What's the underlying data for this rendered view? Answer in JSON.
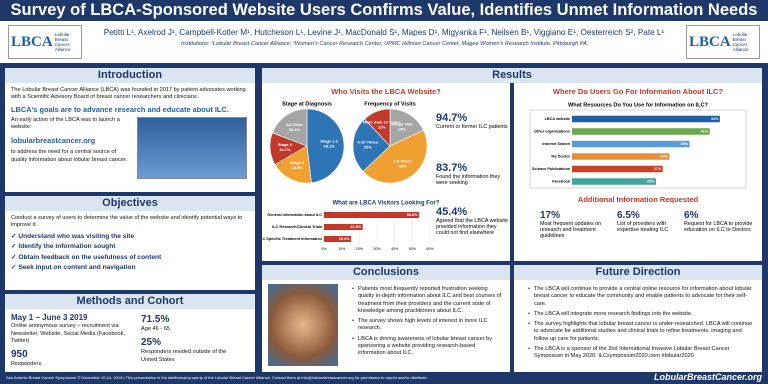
{
  "header": {
    "title": "Survey of LBCA-Sponsored Website Users Confirms Value, Identifies Unmet Information Needs",
    "authors": "Petitti L¹, Axelrod J¹, Campbell-Kotler M¹, Hutcheson L¹, Levine J¹, MacDonald S¹, Mapes D¹, Migyanka F¹, Neilsen B¹, Viggiano E¹, Oesterreich S², Pate L¹",
    "institutions": "Institutions: ¹Lobular Breast Cancer Alliance; ²Women's Cancer Research Center, UPMC Hillman Cancer Center, Magee Women's Research Institute, Pittsburgh PA",
    "logo_mark": "LBCA",
    "logo_text": "Lobular Breast Cancer Alliance"
  },
  "intro": {
    "heading": "Introduction",
    "text": "The Lobular Breast Cancer Alliance (LBCA) was founded in 2017 by patient advocates working with a Scientific Advisory Board of breast cancer researchers and clinicians.",
    "subheading": "LBCA's goals are to advance research and educate about ILC.",
    "early": "An early action of the LBCA was to launch a website:",
    "url": "lobularbreastcancer.org",
    "need": "to address the need for a central source of quality information about lobular breast cancer."
  },
  "objectives": {
    "heading": "Objectives",
    "text": "Conduct a survey of users to determine the value of the website and identify potential ways to improve it.",
    "items": [
      "Understand who was visiting the site",
      "Identify the information sought",
      "Obtain feedback on the usefulness of content",
      "Seek input on content and navigation"
    ]
  },
  "methods": {
    "heading": "Methods and Cohort",
    "date": "May 1 – June 3 2019",
    "recruit": "Online anonymous survey – recruitment via Newsletter, Website, Social Media (Facebook, Twitter)",
    "n": "950",
    "n_label": "Responders",
    "stats": [
      {
        "value": "71.5%",
        "label": "Age 46 - 65"
      },
      {
        "value": "25%",
        "label": "Responders resided outside of the United States"
      }
    ]
  },
  "results": {
    "heading": "Results",
    "who_title": "Who Visits the LBCA Website?",
    "stage_pie": {
      "type": "pie",
      "title": "Stage at Diagnosis",
      "categories": [
        "Stage 1-2",
        "Stage 3",
        "Stage 4",
        "All Other"
      ],
      "values": [
        48.1,
        18.5,
        14.2,
        19.2
      ],
      "value_labels": [
        "48.1%",
        "18.5%",
        "14.2%",
        "19.2%"
      ],
      "colors": [
        "#2e75b6",
        "#f0a030",
        "#c0392b",
        "#a5a5a5"
      ]
    },
    "visit_pie": {
      "type": "pie",
      "title": "Frequency of Visits",
      "categories": [
        "Single Visit",
        "2-5 Times",
        "6-10 Times",
        "More than 10 Times"
      ],
      "values": [
        18,
        45,
        25,
        12
      ],
      "value_labels": [
        "18%",
        "45%",
        "25%",
        "12%"
      ],
      "colors": [
        "#a5a5a5",
        "#f0a030",
        "#2e75b6",
        "#c0392b"
      ]
    },
    "stats": [
      {
        "value": "94.7%",
        "label": "Current or former ILC patients"
      },
      {
        "value": "83.7%",
        "label": "Found the information they were seeking"
      },
      {
        "value": "45.4%",
        "label": "Agreed that the LBCA website provided information they could not find elsewhere"
      }
    ],
    "looking": {
      "type": "bar",
      "title": "What are LBCA Visitors Looking For?",
      "categories": [
        "General Information about ILC",
        "ILC Research/Clinical Trials",
        "ILC Specific Treatment Information"
      ],
      "values": [
        53.8,
        21.9,
        15.3
      ],
      "value_labels": [
        "53.8%",
        "21.9%",
        "15.3%"
      ],
      "color": "#c0392b",
      "xlim": [
        0,
        60
      ],
      "xticks": [
        {
          "value": 0,
          "label": "0%"
        },
        {
          "value": 10,
          "label": "10%"
        },
        {
          "value": 20,
          "label": "20%"
        },
        {
          "value": 30,
          "label": "30%"
        },
        {
          "value": 40,
          "label": "40%"
        },
        {
          "value": 50,
          "label": "50%"
        },
        {
          "value": 60,
          "label": "60%"
        }
      ]
    },
    "where_title": "Where Do Users Go For Information About ILC?",
    "resources": {
      "type": "bar",
      "title": "What Resources Do You Use for Information on ILC?",
      "categories": [
        "LBCA website",
        "Other organizations",
        "Internet Search",
        "My Doctor",
        "Science Publications",
        "Facebook"
      ],
      "values": [
        44,
        41,
        35,
        29,
        27,
        25
      ],
      "value_labels": [
        "44%",
        "41%",
        "35%",
        "29%",
        "27%",
        "25%"
      ],
      "colors": [
        "#1f5fa8",
        "#6aa84f",
        "#5b9bd5",
        "#e69138",
        "#cc4125",
        "#45a29e"
      ],
      "xlim": [
        0,
        50
      ]
    },
    "additional_title": "Additional Information Requested",
    "additional": [
      {
        "value": "17%",
        "label": "Most frequent updates on research and treatment guidelines"
      },
      {
        "value": "6.5%",
        "label": "List of providers with expertise treating ILC"
      },
      {
        "value": "6%",
        "label": "Request for LBCA to provide education on ILC to Doctors"
      }
    ]
  },
  "conclusions": {
    "heading": "Conclusions",
    "items": [
      "Patients most frequently reported frustration seeking quality in-depth information about ILC and best courses of treatment from their providers and the current state of knowledge among practitioners about ILC.",
      "The survey shows high levels of interest in more ILC research.",
      "LBCA is driving awareness of lobular breast cancer by sponsoring a website providing research-based information about ILC."
    ]
  },
  "future": {
    "heading": "Future Direction",
    "items": [
      "The LBCA will continue to provide a central online resource for information about lobular breast cancer to educate the community and enable patients to advocate for their self-care.",
      "The LBCA will integrate more research findings into the website.",
      "The survey highlights that lobular breast cancer is under-researched. LBCA will continue to advocate for additional studies and clinical trials to refine treatments, imaging and follow up care for patients.",
      "The LBCA is a sponsor of the 2nd International Invasive Lobular Breast Cancer Symposium in May 2020. ILCsymposium2020.com #lobular2020"
    ]
  },
  "footer": {
    "text": "San Antonio Breast Cancer Symposium © December 10-14, 2019 | This presentation is the intellectual property of the Lobular Breast Cancer Alliance. Contact them at info@lobularbreastcancer.org for permission to reprint and/or distribute.",
    "url": "LobularBreastCancer.org"
  }
}
